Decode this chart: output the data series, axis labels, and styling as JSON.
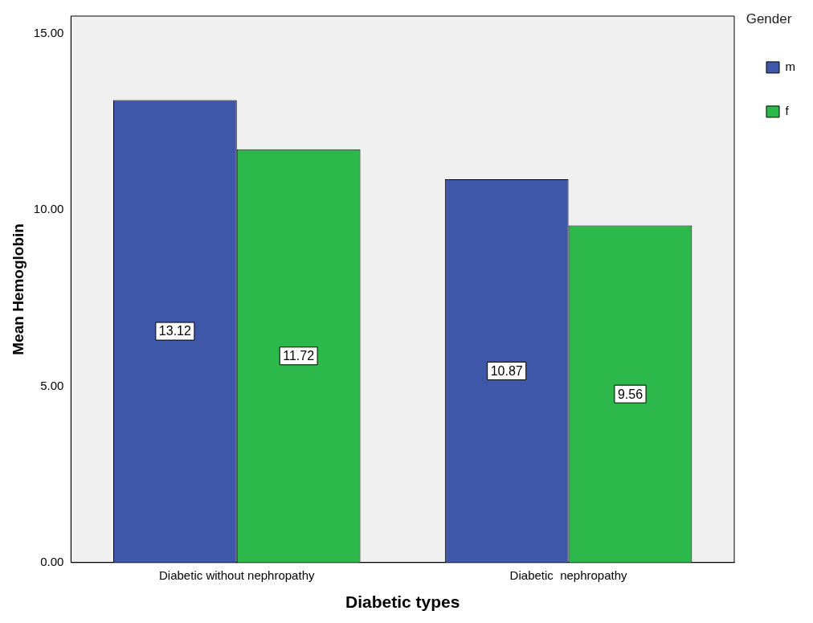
{
  "chart_data": {
    "type": "bar",
    "xlabel": "Diabetic types",
    "ylabel": "Mean Hemoglobin",
    "legend_title": "Gender",
    "categories": [
      "Diabetic without nephropathy",
      "Diabetic  nephropathy"
    ],
    "series": [
      {
        "name": "m",
        "color": "#3f57a8",
        "values": [
          13.12,
          10.87
        ]
      },
      {
        "name": "f",
        "color": "#2db84c",
        "values": [
          11.72,
          9.56
        ]
      }
    ],
    "ylim": [
      0,
      15.5
    ],
    "yticks": [
      {
        "value": 0,
        "label": "0.00"
      },
      {
        "value": 5,
        "label": "5.00"
      },
      {
        "value": 10,
        "label": "10.00"
      },
      {
        "value": 15,
        "label": "15.00"
      }
    ],
    "data_labels": true,
    "grid": false,
    "legend": "top right"
  }
}
